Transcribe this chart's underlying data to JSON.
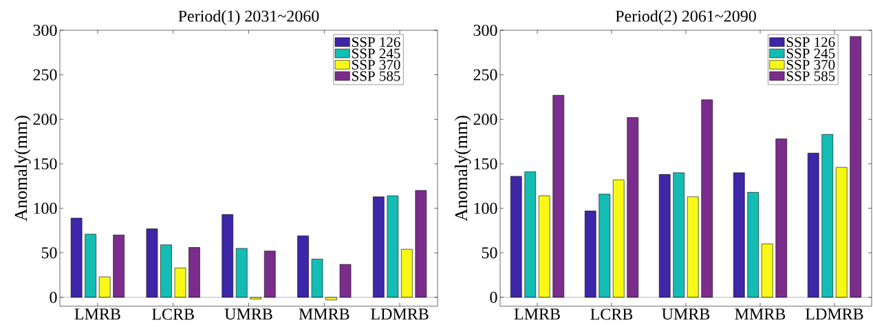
{
  "chart_data": [
    {
      "type": "bar",
      "title": "Period(1) 2031~2060",
      "ylabel": "Anomaly(mm)",
      "categories": [
        "LMRB",
        "LCRB",
        "UMRB",
        "MMRB",
        "LDMRB"
      ],
      "series": [
        {
          "name": "SSP 126",
          "color": "#3d26a8",
          "values": [
            89,
            77,
            93,
            69,
            113
          ]
        },
        {
          "name": "SSP 245",
          "color": "#14bdb4",
          "values": [
            71,
            59,
            55,
            43,
            114
          ]
        },
        {
          "name": "SSP 370",
          "color": "#f8f816",
          "values": [
            23,
            33,
            -2,
            -3,
            54
          ]
        },
        {
          "name": "SSP 585",
          "color": "#7b2d8c",
          "values": [
            70,
            56,
            52,
            37,
            120
          ]
        }
      ],
      "ylim": [
        -10,
        300
      ],
      "yticks": [
        0,
        50,
        100,
        150,
        200,
        250,
        300
      ],
      "legend": "top right",
      "grid": false,
      "ref_lines": [
        {
          "axis": "y",
          "value": 0,
          "color": "#000000"
        }
      ]
    },
    {
      "type": "bar",
      "title": "Period(2) 2061~2090",
      "ylabel": "Anomaly(mm)",
      "categories": [
        "LMRB",
        "LCRB",
        "UMRB",
        "MMRB",
        "LDMRB"
      ],
      "series": [
        {
          "name": "SSP 126",
          "color": "#3d26a8",
          "values": [
            136,
            97,
            138,
            140,
            162
          ]
        },
        {
          "name": "SSP 245",
          "color": "#14bdb4",
          "values": [
            141,
            116,
            140,
            118,
            183
          ]
        },
        {
          "name": "SSP 370",
          "color": "#f8f816",
          "values": [
            114,
            132,
            113,
            60,
            146
          ]
        },
        {
          "name": "SSP 585",
          "color": "#7b2d8c",
          "values": [
            227,
            202,
            222,
            178,
            293
          ]
        }
      ],
      "ylim": [
        -10,
        300
      ],
      "yticks": [
        0,
        50,
        100,
        150,
        200,
        250,
        300
      ],
      "legend": "top right",
      "grid": false,
      "ref_lines": [
        {
          "axis": "y",
          "value": 0,
          "color": "#000000"
        }
      ]
    }
  ]
}
